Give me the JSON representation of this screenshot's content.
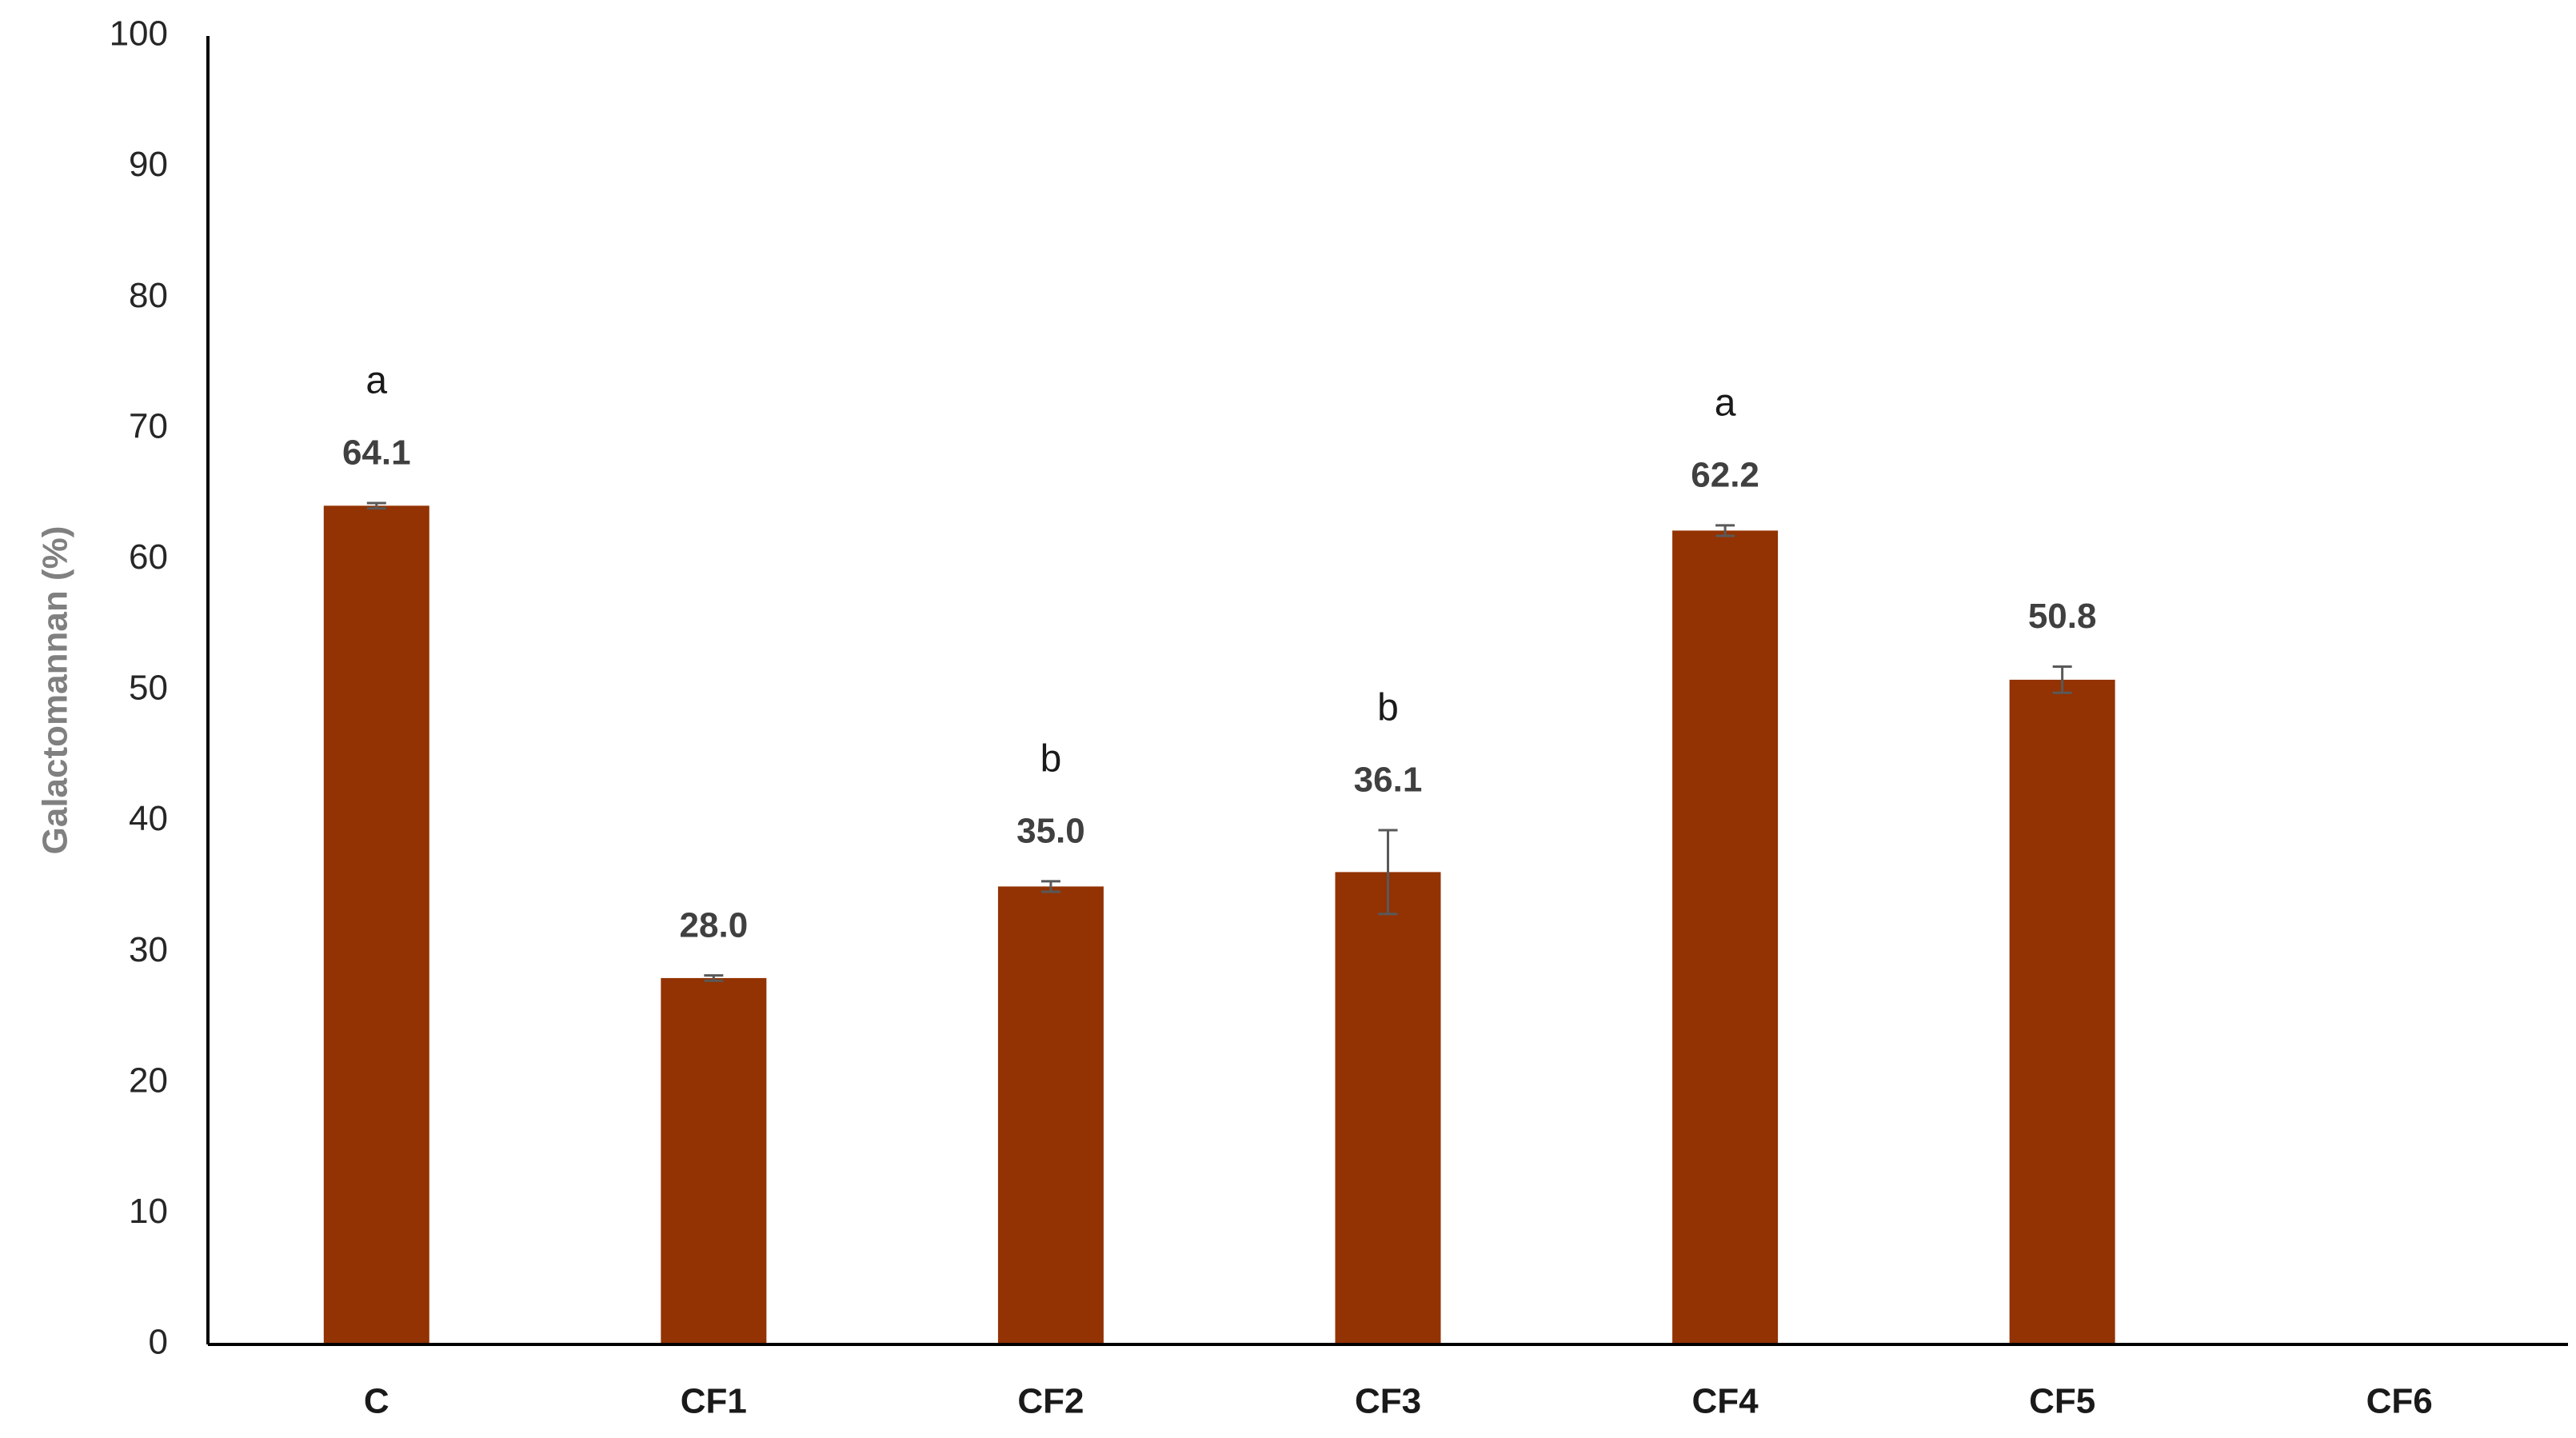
{
  "chart_data": {
    "type": "bar",
    "y_label": "Galactomannan (%)",
    "categories": [
      "C",
      "CF1",
      "CF2",
      "CF3",
      "CF4",
      "CF5",
      "CF6"
    ],
    "values": [
      64.1,
      28.0,
      35.0,
      36.1,
      62.2,
      50.8,
      null
    ],
    "value_labels": [
      "64.1",
      "28.0",
      "35.0",
      "36.1",
      "62.2",
      "50.8",
      null
    ],
    "errors": [
      0.2,
      0.2,
      0.4,
      3.2,
      0.4,
      1.0,
      null
    ],
    "letters": [
      "a",
      null,
      "b",
      "b",
      "a",
      null,
      null
    ],
    "color": "#933202",
    "error_color": "#595959",
    "ylim": [
      0,
      100
    ],
    "yticks": [
      0,
      10,
      20,
      30,
      40,
      50,
      60,
      70,
      80,
      90,
      100
    ],
    "grid": false
  }
}
